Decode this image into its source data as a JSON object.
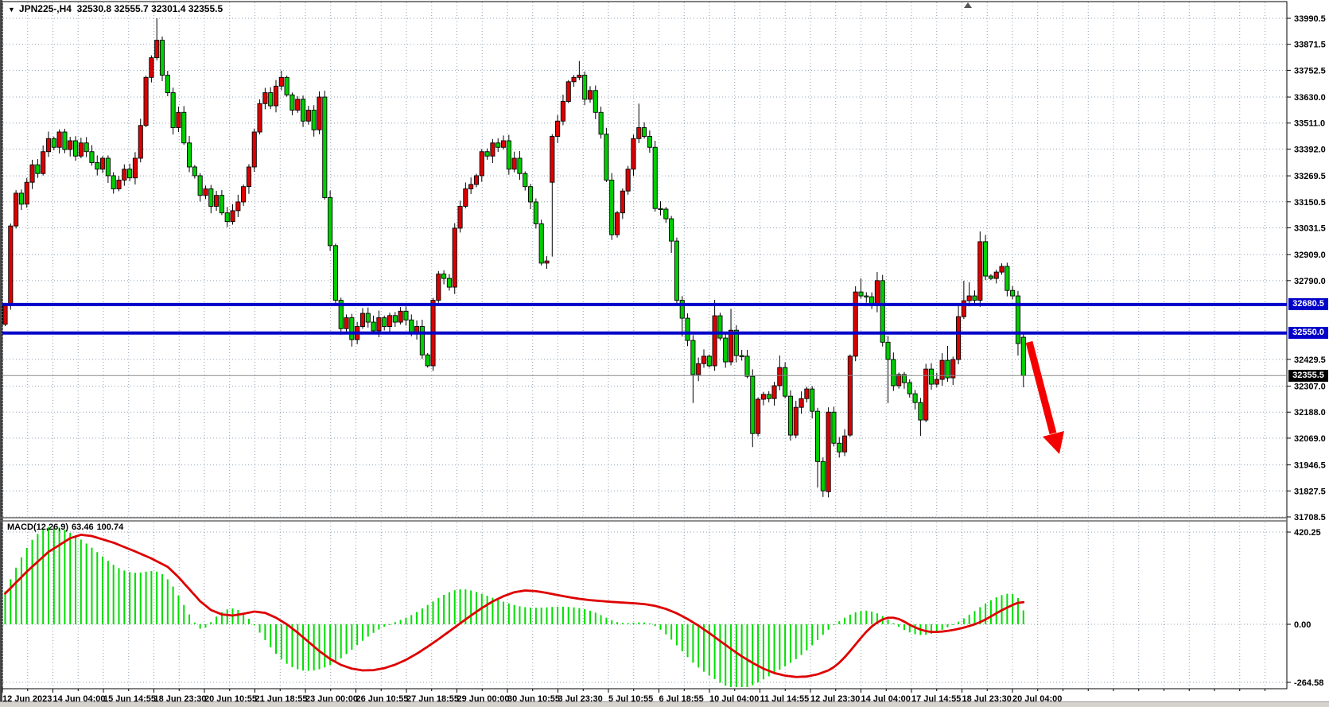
{
  "window": {
    "symbol_title": "JPN225-,H4",
    "ohlc_readout": "32530.8 32555.7 32301.4 32355.5",
    "dropdown_icon": "▼"
  },
  "indicator": {
    "name_label": "MACD(12,26,9)",
    "macd_value": "63.46",
    "signal_value": "100.74"
  },
  "levels": {
    "resistance_1": {
      "price": 32680.5,
      "label": "32680.5",
      "color": "#0000c8"
    },
    "resistance_2": {
      "price": 32550.0,
      "label": "32550.0",
      "color": "#0000c8"
    },
    "current_price": {
      "price": 32355.5,
      "label": "32355.5",
      "color": "#000000"
    }
  },
  "colors": {
    "bull_body": "#dd0000",
    "bear_body": "#00ce00",
    "wick": "#000000",
    "grid": "#8fa0b3",
    "hist": "#00de00",
    "signal": "#de0000",
    "level_blue": "#0000c8",
    "arrow_red": "#f50000",
    "background": "#ffffff"
  },
  "chart_data": {
    "type": "candlestick+macd",
    "title": "JPN225-,H4  32530.8 32555.7 32301.4 32355.5",
    "x_axis_labels": [
      "12 Jun 2023",
      "14 Jun 04:00",
      "15 Jun 14:55",
      "18 Jun 23:30",
      "20 Jun 10:55",
      "21 Jun 18:55",
      "23 Jun 00:00",
      "26 Jun 10:55",
      "27 Jun 18:55",
      "29 Jun 00:00",
      "30 Jun 10:55",
      "3 Jul 23:30",
      "5 Jul 10:55",
      "6 Jul 18:55",
      "10 Jul 04:00",
      "11 Jul 14:55",
      "12 Jul 23:30",
      "14 Jul 04:00",
      "17 Jul 14:55",
      "18 Jul 23:30",
      "20 Jul 04:00"
    ],
    "y_axis_ticks": [
      33990.5,
      33871.5,
      33752.5,
      33630.0,
      33511.0,
      33392.0,
      33269.5,
      33150.5,
      33031.5,
      32909.0,
      32790.0,
      32429.5,
      32307.0,
      32188.0,
      32069.0,
      31946.5,
      31827.5,
      31708.5
    ],
    "y_axis_range": [
      31708.5,
      33990.5
    ],
    "macd_axis_ticks": [
      420.25,
      0.0,
      -264.58
    ],
    "macd_axis_labels": [
      "420.25",
      "0.00",
      "-264.58"
    ],
    "first_open": 32590,
    "closes": [
      32680,
      33040,
      33190,
      33140,
      33240,
      33320,
      33280,
      33380,
      33440,
      33400,
      33470,
      33390,
      33430,
      33360,
      33420,
      33380,
      33330,
      33300,
      33350,
      33270,
      33210,
      33250,
      33300,
      33260,
      33350,
      33500,
      33720,
      33810,
      33890,
      33730,
      33650,
      33490,
      33560,
      33420,
      33310,
      33270,
      33180,
      33210,
      33130,
      33180,
      33100,
      33060,
      33110,
      33150,
      33220,
      33310,
      33470,
      33600,
      33650,
      33590,
      33680,
      33720,
      33640,
      33570,
      33620,
      33520,
      33570,
      33480,
      33630,
      33170,
      32950,
      32700,
      32570,
      32620,
      32520,
      32580,
      32640,
      32600,
      32560,
      32620,
      32580,
      32630,
      32600,
      32650,
      32610,
      32550,
      32580,
      32450,
      32400,
      32700,
      32820,
      32800,
      32760,
      33030,
      33130,
      33210,
      33230,
      33270,
      33380,
      33360,
      33420,
      33400,
      33430,
      33300,
      33350,
      33280,
      33220,
      33150,
      33050,
      32870,
      32880,
      33450,
      33520,
      33610,
      33700,
      33720,
      33730,
      33620,
      33660,
      33560,
      33460,
      33250,
      33000,
      33100,
      33200,
      33300,
      33440,
      33490,
      33450,
      33400,
      33120,
      33117,
      33073,
      32971,
      32700,
      32618,
      32516,
      32360,
      32410,
      32444,
      32400,
      32629,
      32527,
      32418,
      32563,
      32447,
      32444,
      32352,
      32090,
      32247,
      32269,
      32250,
      32309,
      32392,
      32261,
      32083,
      32210,
      32250,
      32294,
      32192,
      31962,
      31828,
      32188,
      32046,
      32006,
      32079,
      32444,
      32738,
      32720,
      32716,
      32676,
      32790,
      32508,
      32429,
      32309,
      32360,
      32323,
      32272,
      32232,
      32152,
      32385,
      32316,
      32338,
      32425,
      32345,
      32429,
      32625,
      32698,
      32720,
      32700,
      32968,
      32811,
      32800,
      32829,
      32855,
      32745,
      32720,
      32502,
      32355.5
    ],
    "open_overrides": {
      "101": 33240,
      "152": 31824,
      "156": 32083,
      "188": 32530.8
    },
    "high_overrides": {
      "28": 33990,
      "101": 33460,
      "106": 33795,
      "117": 33600,
      "131": 32702,
      "134": 32661,
      "143": 32447,
      "157": 32764,
      "158": 32800,
      "161": 32829,
      "174": 32491,
      "176": 32680,
      "177": 32789,
      "178": 32782,
      "180": 33015,
      "188": 32555.7
    },
    "low_overrides": {
      "101": 32900,
      "123": 32917,
      "124": 32684,
      "125": 32534,
      "127": 32230,
      "138": 32028,
      "150": 31843,
      "151": 31800,
      "154": 31980,
      "163": 32229,
      "169": 32079,
      "187": 32447,
      "188": 32301.4
    },
    "macd_histogram": [
      150,
      205,
      258,
      305,
      348,
      385,
      412,
      432,
      443,
      446,
      441,
      430,
      417,
      402,
      386,
      368,
      349,
      329,
      309,
      289,
      271,
      256,
      245,
      238,
      235,
      236,
      240,
      243,
      240,
      228,
      205,
      172,
      132,
      88,
      45,
      8,
      -20,
      -15,
      10,
      35,
      55,
      68,
      72,
      65,
      48,
      25,
      -5,
      -38,
      -72,
      -105,
      -135,
      -160,
      -180,
      -195,
      -205,
      -211,
      -212,
      -210,
      -205,
      -197,
      -186,
      -172,
      -155,
      -136,
      -116,
      -95,
      -75,
      -56,
      -39,
      -24,
      -11,
      0,
      10,
      20,
      30,
      42,
      56,
      72,
      88,
      104,
      120,
      134,
      146,
      155,
      160,
      159,
      154,
      147,
      139,
      130,
      121,
      112,
      103,
      95,
      88,
      82,
      78,
      76,
      75,
      76,
      77,
      79,
      80,
      80,
      79,
      77,
      74,
      69,
      62,
      53,
      42,
      30,
      18,
      10,
      6,
      5,
      7,
      9,
      8,
      4,
      -8,
      -25,
      -46,
      -70,
      -96,
      -123,
      -150,
      -175,
      -197,
      -216,
      -233,
      -250,
      -266,
      -280,
      -290,
      -295,
      -294,
      -288,
      -278,
      -265,
      -251,
      -237,
      -222,
      -207,
      -192,
      -176,
      -159,
      -140,
      -119,
      -96,
      -72,
      -48,
      -25,
      -4,
      14,
      30,
      44,
      55,
      61,
      62,
      58,
      50,
      38,
      22,
      5,
      -12,
      -26,
      -37,
      -45,
      -49,
      -48,
      -43,
      -35,
      -25,
      -14,
      -2,
      12,
      27,
      43,
      60,
      78,
      95,
      110,
      123,
      133,
      139,
      138,
      120,
      63.46
    ],
    "signal_keyframes": [
      [
        0,
        140
      ],
      [
        4,
        240
      ],
      [
        8,
        330
      ],
      [
        12,
        392
      ],
      [
        14,
        408
      ],
      [
        16,
        402
      ],
      [
        20,
        372
      ],
      [
        24,
        332
      ],
      [
        27,
        300
      ],
      [
        30,
        262
      ],
      [
        32,
        215
      ],
      [
        34,
        160
      ],
      [
        36,
        105
      ],
      [
        38,
        65
      ],
      [
        40,
        45
      ],
      [
        42,
        40
      ],
      [
        44,
        48
      ],
      [
        46,
        58
      ],
      [
        48,
        52
      ],
      [
        50,
        30
      ],
      [
        52,
        0
      ],
      [
        54,
        -38
      ],
      [
        56,
        -80
      ],
      [
        58,
        -122
      ],
      [
        60,
        -158
      ],
      [
        62,
        -185
      ],
      [
        64,
        -202
      ],
      [
        66,
        -210
      ],
      [
        68,
        -209
      ],
      [
        70,
        -200
      ],
      [
        72,
        -184
      ],
      [
        74,
        -162
      ],
      [
        76,
        -134
      ],
      [
        78,
        -102
      ],
      [
        80,
        -68
      ],
      [
        82,
        -32
      ],
      [
        84,
        4
      ],
      [
        86,
        40
      ],
      [
        88,
        74
      ],
      [
        90,
        104
      ],
      [
        92,
        128
      ],
      [
        94,
        146
      ],
      [
        96,
        154
      ],
      [
        98,
        151
      ],
      [
        100,
        143
      ],
      [
        102,
        133
      ],
      [
        104,
        124
      ],
      [
        106,
        116
      ],
      [
        108,
        110
      ],
      [
        110,
        106
      ],
      [
        112,
        102
      ],
      [
        114,
        99
      ],
      [
        116,
        96
      ],
      [
        118,
        92
      ],
      [
        120,
        84
      ],
      [
        122,
        70
      ],
      [
        124,
        50
      ],
      [
        126,
        24
      ],
      [
        128,
        -6
      ],
      [
        130,
        -40
      ],
      [
        132,
        -76
      ],
      [
        134,
        -112
      ],
      [
        136,
        -146
      ],
      [
        138,
        -176
      ],
      [
        140,
        -202
      ],
      [
        142,
        -222
      ],
      [
        144,
        -234
      ],
      [
        146,
        -240
      ],
      [
        148,
        -238
      ],
      [
        150,
        -228
      ],
      [
        152,
        -210
      ],
      [
        153,
        -195
      ],
      [
        154,
        -175
      ],
      [
        155,
        -150
      ],
      [
        156,
        -122
      ],
      [
        157,
        -92
      ],
      [
        158,
        -62
      ],
      [
        159,
        -34
      ],
      [
        160,
        -10
      ],
      [
        161,
        8
      ],
      [
        162,
        22
      ],
      [
        163,
        30
      ],
      [
        164,
        30
      ],
      [
        165,
        24
      ],
      [
        166,
        12
      ],
      [
        167,
        -2
      ],
      [
        168,
        -14
      ],
      [
        169,
        -24
      ],
      [
        170,
        -31
      ],
      [
        171,
        -35
      ],
      [
        172,
        -35
      ],
      [
        173,
        -33
      ],
      [
        174,
        -30
      ],
      [
        175,
        -26
      ],
      [
        176,
        -21
      ],
      [
        177,
        -15
      ],
      [
        178,
        -8
      ],
      [
        179,
        0
      ],
      [
        180,
        10
      ],
      [
        181,
        22
      ],
      [
        182,
        36
      ],
      [
        183,
        50
      ],
      [
        184,
        64
      ],
      [
        185,
        76
      ],
      [
        186,
        88
      ],
      [
        187,
        98
      ],
      [
        188,
        100.74
      ]
    ],
    "annotation_arrow": {
      "type": "arrow",
      "color": "#f50000",
      "direction": "down-right",
      "from_price": 32340,
      "to_price": 31990
    }
  }
}
